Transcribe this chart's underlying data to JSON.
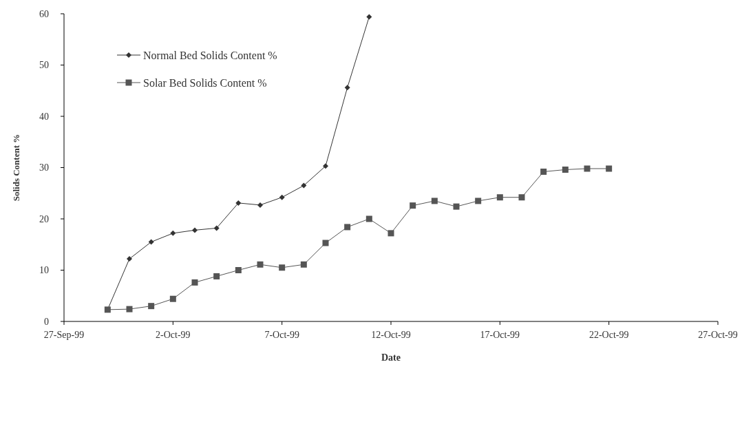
{
  "chart_data": {
    "type": "line",
    "xlabel": "Date",
    "ylabel": "Solids Content %",
    "xlim": [
      "1999-09-27",
      "1999-10-27"
    ],
    "xticks": [
      {
        "value": "1999-09-27",
        "label": "27-Sep-99"
      },
      {
        "value": "1999-10-02",
        "label": "2-Oct-99"
      },
      {
        "value": "1999-10-07",
        "label": "7-Oct-99"
      },
      {
        "value": "1999-10-12",
        "label": "12-Oct-99"
      },
      {
        "value": "1999-10-17",
        "label": "17-Oct-99"
      },
      {
        "value": "1999-10-22",
        "label": "22-Oct-99"
      },
      {
        "value": "1999-10-27",
        "label": "27-Oct-99"
      }
    ],
    "ylim": [
      0,
      60
    ],
    "yticks": [
      0,
      10,
      20,
      30,
      40,
      50,
      60
    ],
    "grid": false,
    "legend": "top left",
    "series": [
      {
        "name": "Normal Bed Solids Content %",
        "color": "#333333",
        "marker": "diamond",
        "x": [
          "1999-09-29",
          "1999-09-30",
          "1999-10-01",
          "1999-10-02",
          "1999-10-03",
          "1999-10-04",
          "1999-10-05",
          "1999-10-06",
          "1999-10-07",
          "1999-10-08",
          "1999-10-09",
          "1999-10-10",
          "1999-10-11"
        ],
        "values": [
          2.3,
          12.2,
          15.5,
          17.2,
          17.8,
          18.2,
          23.1,
          22.7,
          24.2,
          26.5,
          30.3,
          45.6,
          59.4
        ]
      },
      {
        "name": "Solar Bed Solids Content %",
        "color": "#555555",
        "marker": "square",
        "x": [
          "1999-09-29",
          "1999-09-30",
          "1999-10-01",
          "1999-10-02",
          "1999-10-03",
          "1999-10-04",
          "1999-10-05",
          "1999-10-06",
          "1999-10-07",
          "1999-10-08",
          "1999-10-09",
          "1999-10-10",
          "1999-10-11",
          "1999-10-12",
          "1999-10-13",
          "1999-10-14",
          "1999-10-15",
          "1999-10-16",
          "1999-10-17",
          "1999-10-18",
          "1999-10-19",
          "1999-10-20",
          "1999-10-21",
          "1999-10-22"
        ],
        "values": [
          2.3,
          2.4,
          3.0,
          4.4,
          7.6,
          8.8,
          10.0,
          11.1,
          10.5,
          11.1,
          15.3,
          18.4,
          20.0,
          17.2,
          22.6,
          23.5,
          22.4,
          23.5,
          24.2,
          24.2,
          29.2,
          29.6,
          29.8,
          29.8
        ]
      }
    ]
  }
}
